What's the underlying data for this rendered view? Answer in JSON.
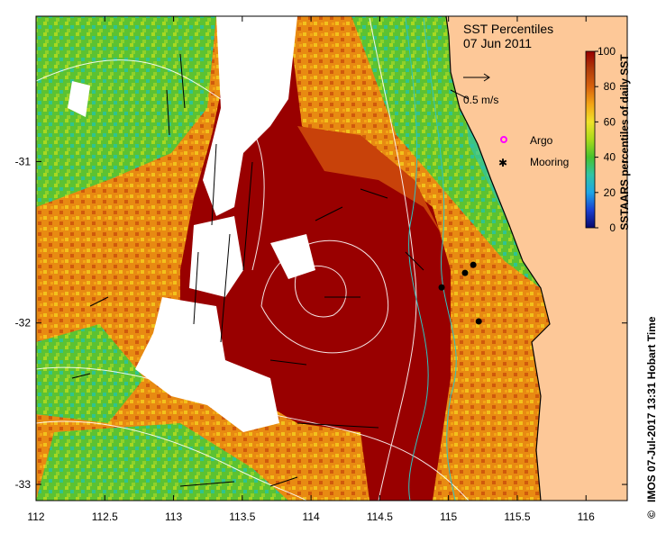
{
  "title": {
    "line1": "SST Percentiles",
    "line2": "07 Jun 2011"
  },
  "velocity_scale": {
    "label": "0.5 m/s"
  },
  "legend": {
    "items": [
      {
        "label": "Argo",
        "marker": "magenta-ring"
      },
      {
        "label": "Mooring",
        "marker": "black-star"
      }
    ]
  },
  "colorbar": {
    "label": "SSTAARS percentiles of daily SST",
    "ticks": [
      "0",
      "20",
      "40",
      "60",
      "80",
      "100"
    ],
    "colors": [
      "#08086b",
      "#1a3fd1",
      "#1ea6e6",
      "#2fc4a5",
      "#46c22e",
      "#a9db1a",
      "#f0e22a",
      "#f3a515",
      "#d8620d",
      "#b03b0a",
      "#990000"
    ]
  },
  "axes": {
    "x_ticks": [
      "112",
      "112.5",
      "113",
      "113.5",
      "114",
      "114.5",
      "115",
      "115.5",
      "116"
    ],
    "y_ticks": [
      "-31",
      "-32",
      "-33"
    ]
  },
  "credit": "IMOS 07-Jul-2017 13:31 Hobart Time",
  "copyright_symbol": "©",
  "moorings": [
    {
      "lon": 114.95,
      "lat": -31.78
    },
    {
      "lon": 115.12,
      "lat": -31.69
    },
    {
      "lon": 115.18,
      "lat": -31.64
    },
    {
      "lon": 115.22,
      "lat": -31.99
    }
  ]
}
